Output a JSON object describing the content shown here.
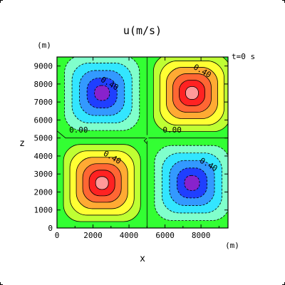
{
  "chart_data": {
    "type": "heatmap",
    "title": "u(m/s)",
    "time_label": "t=0  s",
    "x_unit": "(m)",
    "y_unit": "(m)",
    "xlabel": "x",
    "ylabel": "z",
    "xlim": [
      0,
      9500
    ],
    "ylim": [
      0,
      9500
    ],
    "x_ticks": [
      0,
      2000,
      4000,
      6000,
      8000
    ],
    "y_ticks": [
      0,
      1000,
      2000,
      3000,
      4000,
      5000,
      6000,
      7000,
      8000,
      9000
    ],
    "x_tick_labels": [
      "0",
      "2000",
      "4000",
      "6000",
      "8000"
    ],
    "y_tick_labels": [
      "0",
      "1000",
      "2000",
      "3000",
      "4000",
      "5000",
      "6000",
      "7000",
      "8000",
      "9000"
    ],
    "cells": [
      {
        "quadrant": "bottom-left",
        "center": [
          2500,
          2500
        ],
        "sign": 1
      },
      {
        "quadrant": "bottom-right",
        "center": [
          7500,
          2500
        ],
        "sign": -1
      },
      {
        "quadrant": "top-left",
        "center": [
          2500,
          7500
        ],
        "sign": -1
      },
      {
        "quadrant": "top-right",
        "center": [
          7500,
          7500
        ],
        "sign": 1
      }
    ],
    "contour_labels": [
      {
        "text": "0.40",
        "x": 2850,
        "y": 7900,
        "angle": 30
      },
      {
        "text": "0.40",
        "x": 8000,
        "y": 8600,
        "angle": 30
      },
      {
        "text": "0.40",
        "x": 3000,
        "y": 3800,
        "angle": 30
      },
      {
        "text": "0.40",
        "x": 8350,
        "y": 3400,
        "angle": 30
      },
      {
        "text": "0.00",
        "x": 1200,
        "y": 5300,
        "angle": 0
      },
      {
        "text": "0.00",
        "x": 6400,
        "y": 5300,
        "angle": 0
      }
    ],
    "colors": {
      "background": "#33ff33",
      "positive": [
        "#33ff33",
        "#bfff33",
        "#ffff33",
        "#ffaa33",
        "#ff6633",
        "#ff2222",
        "#ff9999"
      ],
      "negative": [
        "#33ff33",
        "#80ffcc",
        "#33e6ff",
        "#3399ff",
        "#1f3fff",
        "#8822cc"
      ]
    },
    "grid": false,
    "legend": "none"
  }
}
